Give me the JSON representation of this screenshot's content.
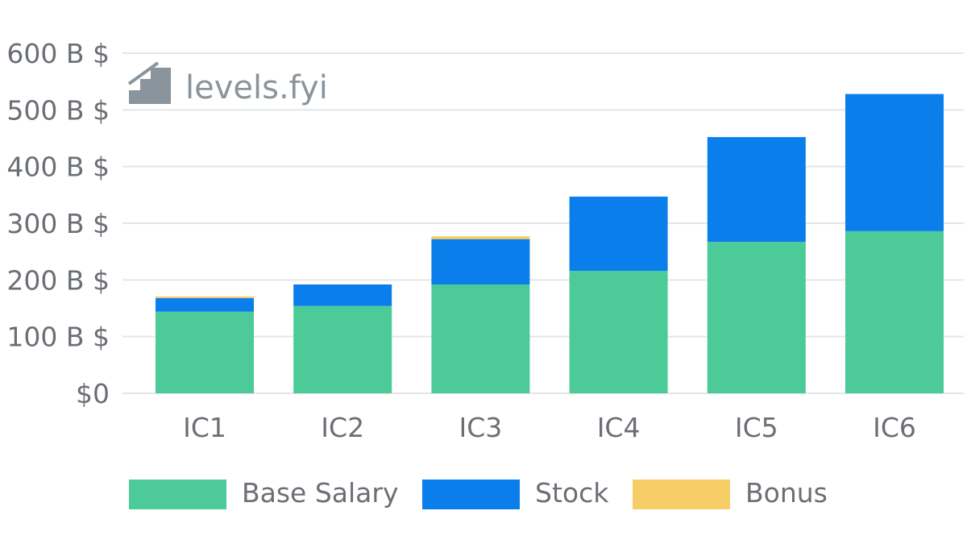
{
  "watermark": {
    "text": "levels.fyi"
  },
  "colors": {
    "base": "#4CCB98",
    "stock": "#0A7EEA",
    "bonus": "#F7CD67",
    "grid": "#e3e6ea",
    "text": "#6b6f75"
  },
  "chart_data": {
    "type": "bar",
    "stacked": true,
    "title": "",
    "xlabel": "",
    "ylabel": "",
    "ylim": [
      0,
      600
    ],
    "y_ticks": [
      {
        "value": 0,
        "label": "$0"
      },
      {
        "value": 100,
        "label": "100 B $"
      },
      {
        "value": 200,
        "label": "200 B $"
      },
      {
        "value": 300,
        "label": "300 B $"
      },
      {
        "value": 400,
        "label": "400 B $"
      },
      {
        "value": 500,
        "label": "500 B $"
      },
      {
        "value": 600,
        "label": "600 B $"
      }
    ],
    "categories": [
      "IC1",
      "IC2",
      "IC3",
      "IC4",
      "IC5",
      "IC6"
    ],
    "series": [
      {
        "name": "Base Salary",
        "color": "#4CCB98",
        "values": [
          144,
          154,
          192,
          216,
          267,
          286
        ]
      },
      {
        "name": "Stock",
        "color": "#0A7EEA",
        "values": [
          24,
          38,
          80,
          131,
          185,
          242
        ]
      },
      {
        "name": "Bonus",
        "color": "#F7CD67",
        "values": [
          3,
          0,
          5,
          0,
          0,
          0
        ]
      }
    ],
    "legend_position": "bottom"
  }
}
